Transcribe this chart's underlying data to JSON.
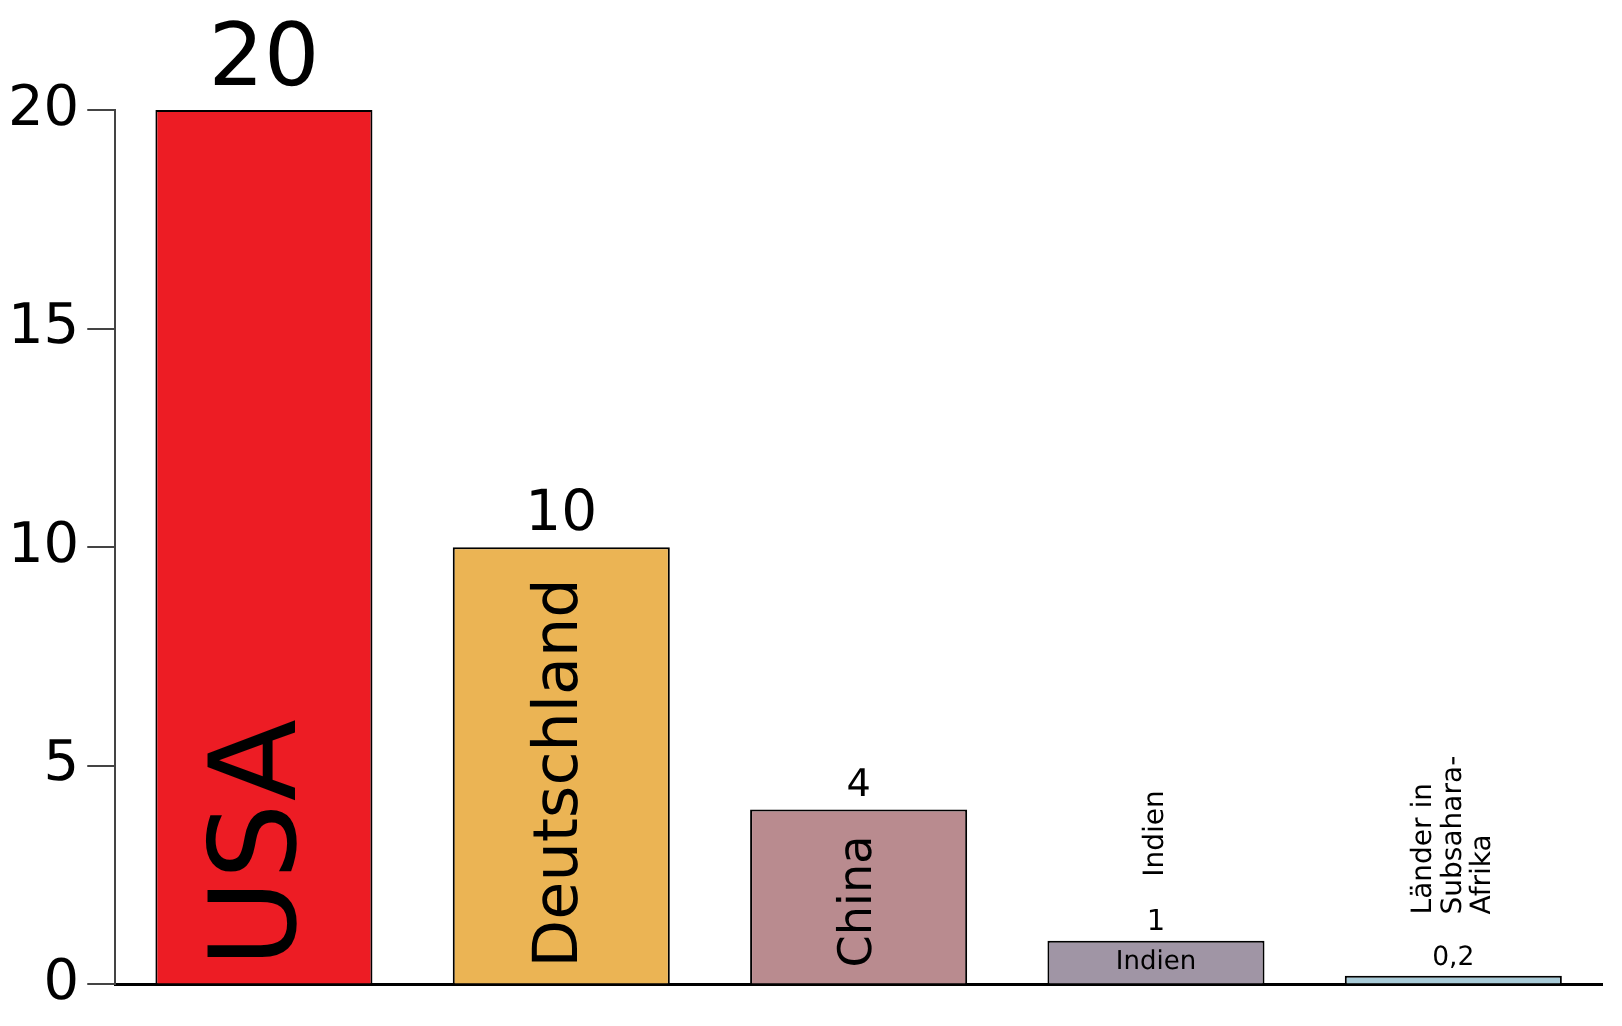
{
  "chart_data": {
    "type": "bar",
    "categories": [
      "USA",
      "Deutschland",
      "China",
      "Indien",
      "Länder in Subsahara-Afrika"
    ],
    "values": [
      20,
      10,
      4,
      1,
      0.2
    ],
    "colors": [
      "#ed1c24",
      "#ebb454",
      "#b98b8f",
      "#a095a5",
      "#a8cbd8"
    ],
    "value_labels": [
      "20",
      "10",
      "4",
      "1",
      "0,2"
    ],
    "ylim": [
      0,
      20
    ],
    "yticks": [
      0,
      5,
      10,
      15,
      20
    ],
    "grid": false,
    "legend": false,
    "tick_labels": "y"
  }
}
